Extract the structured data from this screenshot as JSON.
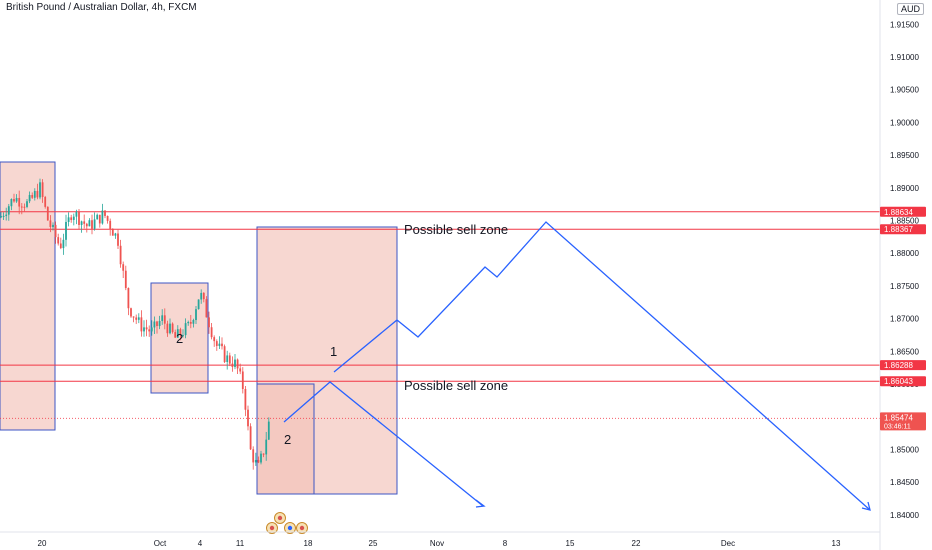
{
  "header": {
    "title": "British Pound / Australian Dollar, 4h, FXCM",
    "currency": "AUD"
  },
  "chart_data": {
    "type": "candlestick",
    "symbol": "GBPAUD",
    "timeframe": "4h",
    "y_axis": {
      "ylim": [
        1.837,
        1.92
      ],
      "ticks": [
        "1.91500",
        "1.91000",
        "1.90500",
        "1.90000",
        "1.89500",
        "1.89000",
        "1.88500",
        "1.88000",
        "1.87500",
        "1.87000",
        "1.86500",
        "1.86000",
        "1.85500",
        "1.85000",
        "1.84500",
        "1.84000"
      ]
    },
    "x_axis": {
      "ticks": [
        "20",
        "Oct",
        "4",
        "11",
        "18",
        "25",
        "Nov",
        "8",
        "15",
        "22",
        "Dec",
        "13"
      ]
    },
    "last_price": {
      "label": "1.85474",
      "countdown": "03:46:11",
      "value": 1.85474
    },
    "price_levels": [
      {
        "label": "1.88634",
        "value": 1.88634
      },
      {
        "label": "1.88367",
        "value": 1.88367
      },
      {
        "label": "1.86288",
        "value": 1.86288
      },
      {
        "label": "1.86043",
        "value": 1.86043
      }
    ],
    "annotations": [
      {
        "text": "Possible sell zone",
        "anchor_price": 1.8845
      },
      {
        "text": "Possible sell zone",
        "anchor_price": 1.8613
      },
      {
        "text": "2",
        "anchor_price": 1.8722
      },
      {
        "text": "1",
        "anchor_price": 1.8678
      },
      {
        "text": "2",
        "anchor_price": 1.8567
      }
    ],
    "colors": {
      "up": "#26a69a",
      "down": "#ef5350",
      "level": "#f23645",
      "zone_fill": "#f2c2b8",
      "zone_border": "#3d56c4",
      "path": "#2962ff"
    }
  }
}
